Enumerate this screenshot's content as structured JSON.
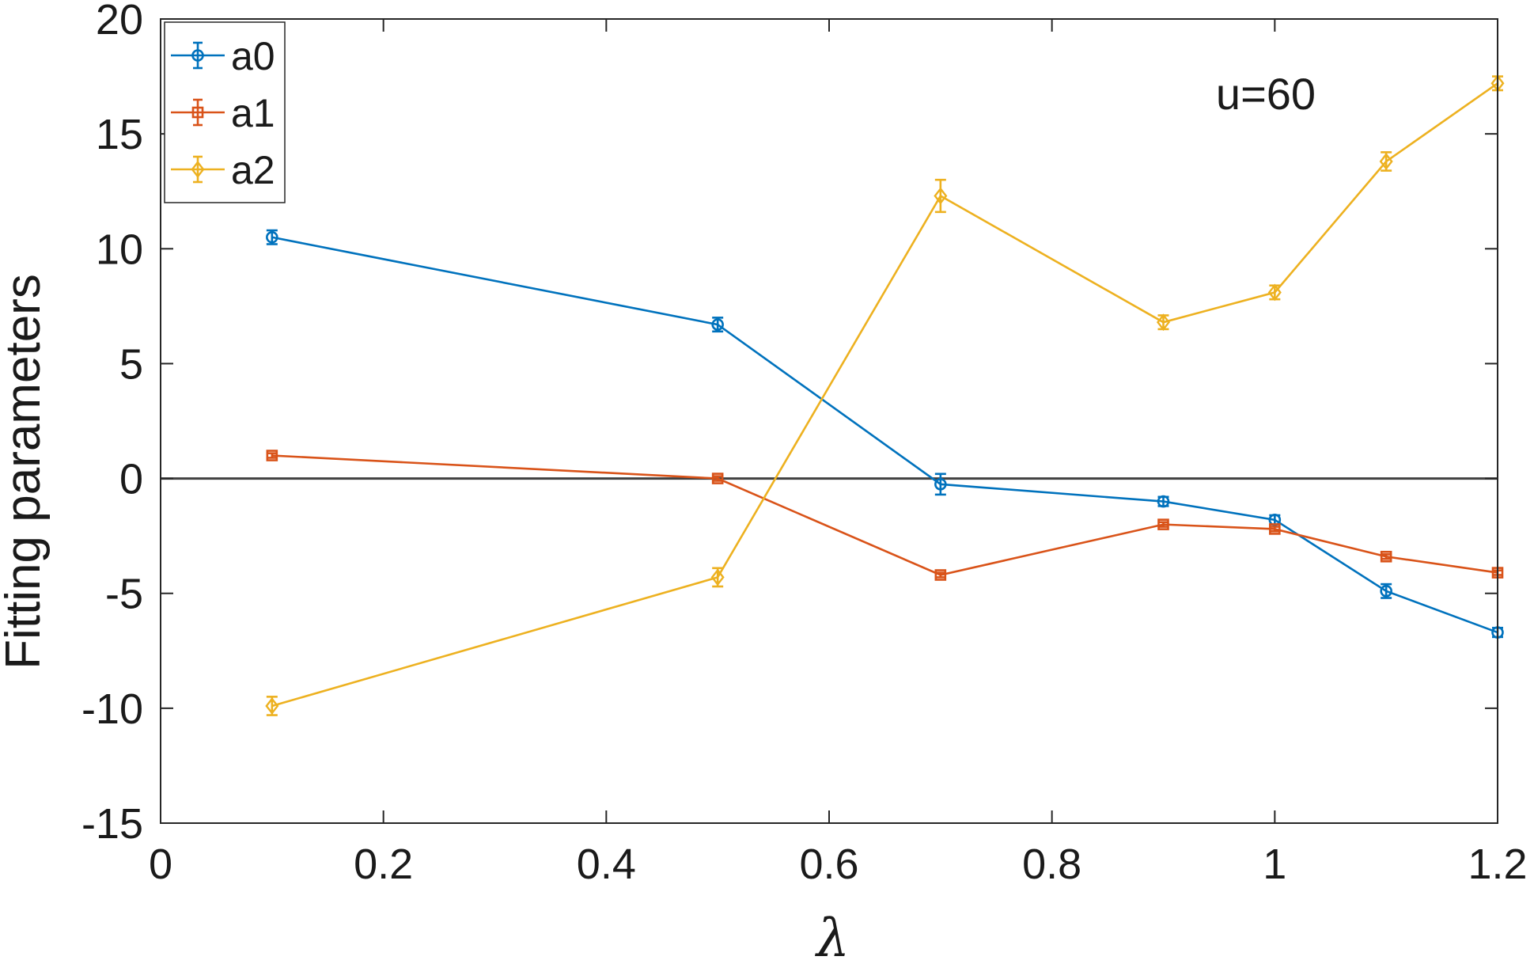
{
  "chart_data": {
    "type": "line",
    "title": "",
    "xlabel": "λ",
    "ylabel": "Fitting parameters",
    "xlim": [
      0,
      1.2
    ],
    "ylim": [
      -15,
      20
    ],
    "x_ticks": [
      "0",
      "0.2",
      "0.4",
      "0.6",
      "0.8",
      "1",
      "1.2"
    ],
    "y_ticks": [
      "-15",
      "-10",
      "-5",
      "0",
      "5",
      "10",
      "15",
      "20"
    ],
    "grid": false,
    "legend_position": "top-left",
    "annotation": "u=60",
    "x": [
      0.1,
      0.5,
      0.7,
      0.9,
      1.0,
      1.1,
      1.2
    ],
    "series": [
      {
        "name": "a0",
        "color": "#0072BD",
        "marker": "circle",
        "values": [
          10.5,
          6.7,
          -0.25,
          -1.0,
          -1.8,
          -4.9,
          -6.7
        ],
        "errors": [
          0.3,
          0.3,
          0.45,
          0.2,
          0.2,
          0.3,
          0.2
        ]
      },
      {
        "name": "a1",
        "color": "#D95319",
        "marker": "square",
        "values": [
          1.0,
          0.0,
          -4.2,
          -2.0,
          -2.2,
          -3.4,
          -4.1
        ],
        "errors": [
          0.1,
          0.1,
          0.1,
          0.1,
          0.1,
          0.1,
          0.1
        ]
      },
      {
        "name": "a2",
        "color": "#EDB120",
        "marker": "diamond",
        "values": [
          -9.9,
          -4.3,
          12.3,
          6.8,
          8.1,
          13.8,
          17.2
        ],
        "errors": [
          0.4,
          0.4,
          0.7,
          0.3,
          0.3,
          0.4,
          0.3
        ]
      }
    ],
    "zero_line": {
      "y": 0,
      "color": "#404040"
    }
  }
}
